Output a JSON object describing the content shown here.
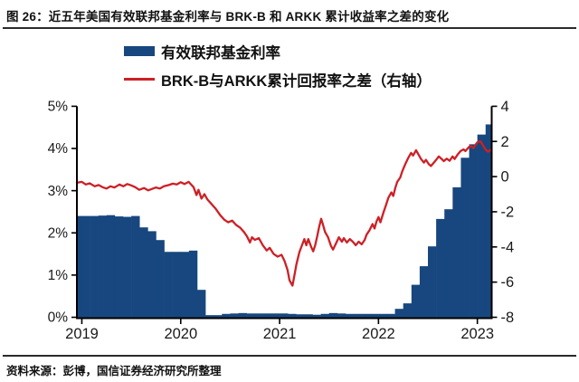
{
  "title": "图 26：近五年美国有效联邦基金利率与 BRK-B 和 ARKK 累计收益率之差的变化",
  "source_note": "资料来源：彭博，国信证券经济研究所整理",
  "colors": {
    "bar": "#17477E",
    "line": "#CD2026",
    "axis": "#000000",
    "rule": "#2A2A2A",
    "text": "#1A1A1A",
    "background": "#FFFFFF"
  },
  "legend": [
    {
      "label": "有效联邦基金利率",
      "swatch": "bar",
      "color": "#17477E"
    },
    {
      "label": "BRK-B与ARKK累计回报率之差（右轴）",
      "swatch": "line",
      "color": "#CD2026"
    }
  ],
  "chart_data": {
    "type": "bar+line combo, dual axis",
    "x_axis": {
      "range": [
        2018.95,
        2023.145
      ],
      "tick_values": [
        2019,
        2020,
        2021,
        2022,
        2023
      ],
      "tick_labels": [
        "2019",
        "2020",
        "2021",
        "2022",
        "2023"
      ]
    },
    "left_axis": {
      "range": [
        0,
        5
      ],
      "tick_values": [
        0,
        1,
        2,
        3,
        4,
        5
      ],
      "tick_labels": [
        "0%",
        "1%",
        "2%",
        "3%",
        "4%",
        "5%"
      ],
      "applies_to": "有效联邦基金利率"
    },
    "right_axis": {
      "range": [
        -8,
        4
      ],
      "tick_values": [
        -8,
        -6,
        -4,
        -2,
        0,
        2,
        4
      ],
      "tick_labels": [
        "-8",
        "-6",
        "-4",
        "-2",
        "0",
        "2",
        "4"
      ],
      "applies_to": "BRK-B与ARKK累计回报率之差"
    },
    "grid": false,
    "legend_position": "top-center",
    "series": [
      {
        "name": "有效联邦基金利率",
        "type": "bar",
        "axis": "left",
        "unit": "%",
        "color": "#17477E",
        "start_month": "2018-12",
        "monthly_values": [
          2.4,
          2.4,
          2.4,
          2.41,
          2.42,
          2.39,
          2.38,
          2.4,
          2.13,
          2.04,
          1.83,
          1.55,
          1.55,
          1.55,
          1.58,
          0.65,
          0.05,
          0.05,
          0.08,
          0.09,
          0.1,
          0.09,
          0.09,
          0.09,
          0.09,
          0.09,
          0.08,
          0.07,
          0.07,
          0.06,
          0.08,
          0.1,
          0.09,
          0.08,
          0.08,
          0.08,
          0.08,
          0.08,
          0.08,
          0.2,
          0.33,
          0.77,
          1.21,
          1.68,
          2.33,
          2.56,
          3.08,
          3.78,
          4.1,
          4.33,
          4.57
        ]
      },
      {
        "name": "BRK-B与ARKK累计回报率之差（右轴）",
        "type": "line",
        "axis": "right",
        "color": "#CD2026",
        "points": [
          [
            2018.95,
            -0.35
          ],
          [
            2019.0,
            -0.3
          ],
          [
            2019.04,
            -0.45
          ],
          [
            2019.08,
            -0.38
          ],
          [
            2019.13,
            -0.55
          ],
          [
            2019.17,
            -0.48
          ],
          [
            2019.21,
            -0.6
          ],
          [
            2019.25,
            -0.68
          ],
          [
            2019.29,
            -0.55
          ],
          [
            2019.33,
            -0.62
          ],
          [
            2019.38,
            -0.45
          ],
          [
            2019.42,
            -0.55
          ],
          [
            2019.46,
            -0.42
          ],
          [
            2019.5,
            -0.5
          ],
          [
            2019.54,
            -0.6
          ],
          [
            2019.58,
            -0.75
          ],
          [
            2019.63,
            -0.65
          ],
          [
            2019.67,
            -0.78
          ],
          [
            2019.71,
            -0.7
          ],
          [
            2019.75,
            -0.62
          ],
          [
            2019.79,
            -0.68
          ],
          [
            2019.83,
            -0.55
          ],
          [
            2019.88,
            -0.48
          ],
          [
            2019.92,
            -0.4
          ],
          [
            2019.96,
            -0.45
          ],
          [
            2020.0,
            -0.32
          ],
          [
            2020.04,
            -0.42
          ],
          [
            2020.08,
            -0.3
          ],
          [
            2020.13,
            -0.6
          ],
          [
            2020.16,
            -1.05
          ],
          [
            2020.18,
            -0.75
          ],
          [
            2020.21,
            -1.25
          ],
          [
            2020.24,
            -1.0
          ],
          [
            2020.27,
            -1.3
          ],
          [
            2020.31,
            -1.55
          ],
          [
            2020.35,
            -1.8
          ],
          [
            2020.4,
            -2.2
          ],
          [
            2020.44,
            -2.45
          ],
          [
            2020.48,
            -2.6
          ],
          [
            2020.52,
            -2.5
          ],
          [
            2020.56,
            -2.75
          ],
          [
            2020.6,
            -2.9
          ],
          [
            2020.64,
            -3.15
          ],
          [
            2020.67,
            -3.4
          ],
          [
            2020.7,
            -3.75
          ],
          [
            2020.72,
            -3.45
          ],
          [
            2020.75,
            -3.6
          ],
          [
            2020.79,
            -3.5
          ],
          [
            2020.83,
            -3.9
          ],
          [
            2020.87,
            -4.2
          ],
          [
            2020.9,
            -4.05
          ],
          [
            2020.94,
            -4.4
          ],
          [
            2020.98,
            -4.55
          ],
          [
            2021.02,
            -4.45
          ],
          [
            2021.05,
            -4.8
          ],
          [
            2021.08,
            -5.3
          ],
          [
            2021.1,
            -5.9
          ],
          [
            2021.13,
            -6.2
          ],
          [
            2021.15,
            -5.6
          ],
          [
            2021.17,
            -5.0
          ],
          [
            2021.2,
            -4.3
          ],
          [
            2021.23,
            -3.85
          ],
          [
            2021.25,
            -3.55
          ],
          [
            2021.27,
            -3.9
          ],
          [
            2021.29,
            -3.55
          ],
          [
            2021.32,
            -4.0
          ],
          [
            2021.34,
            -4.25
          ],
          [
            2021.36,
            -3.9
          ],
          [
            2021.38,
            -3.4
          ],
          [
            2021.4,
            -2.85
          ],
          [
            2021.42,
            -2.4
          ],
          [
            2021.44,
            -2.75
          ],
          [
            2021.46,
            -3.15
          ],
          [
            2021.49,
            -3.45
          ],
          [
            2021.52,
            -3.95
          ],
          [
            2021.54,
            -4.15
          ],
          [
            2021.57,
            -3.8
          ],
          [
            2021.6,
            -3.45
          ],
          [
            2021.63,
            -3.7
          ],
          [
            2021.65,
            -3.5
          ],
          [
            2021.68,
            -3.75
          ],
          [
            2021.71,
            -3.55
          ],
          [
            2021.74,
            -3.7
          ],
          [
            2021.77,
            -3.9
          ],
          [
            2021.8,
            -3.7
          ],
          [
            2021.83,
            -3.85
          ],
          [
            2021.86,
            -3.6
          ],
          [
            2021.88,
            -3.3
          ],
          [
            2021.91,
            -3.05
          ],
          [
            2021.94,
            -2.7
          ],
          [
            2021.96,
            -2.95
          ],
          [
            2021.98,
            -2.55
          ],
          [
            2022.0,
            -2.3
          ],
          [
            2022.02,
            -2.6
          ],
          [
            2022.05,
            -2.05
          ],
          [
            2022.08,
            -1.55
          ],
          [
            2022.1,
            -1.2
          ],
          [
            2022.13,
            -0.9
          ],
          [
            2022.15,
            -1.1
          ],
          [
            2022.17,
            -0.65
          ],
          [
            2022.19,
            -0.3
          ],
          [
            2022.22,
            -0.05
          ],
          [
            2022.24,
            0.3
          ],
          [
            2022.27,
            0.7
          ],
          [
            2022.3,
            1.05
          ],
          [
            2022.33,
            1.35
          ],
          [
            2022.35,
            1.2
          ],
          [
            2022.38,
            1.5
          ],
          [
            2022.4,
            1.3
          ],
          [
            2022.43,
            1.0
          ],
          [
            2022.46,
            0.8
          ],
          [
            2022.48,
            0.95
          ],
          [
            2022.51,
            0.7
          ],
          [
            2022.53,
            0.6
          ],
          [
            2022.56,
            0.8
          ],
          [
            2022.59,
            1.0
          ],
          [
            2022.61,
            1.15
          ],
          [
            2022.64,
            1.0
          ],
          [
            2022.66,
            0.88
          ],
          [
            2022.69,
            1.02
          ],
          [
            2022.72,
            0.9
          ],
          [
            2022.75,
            1.15
          ],
          [
            2022.77,
            1.0
          ],
          [
            2022.8,
            1.25
          ],
          [
            2022.83,
            1.45
          ],
          [
            2022.86,
            1.55
          ],
          [
            2022.88,
            1.45
          ],
          [
            2022.91,
            1.65
          ],
          [
            2022.93,
            1.75
          ],
          [
            2022.96,
            1.62
          ],
          [
            2022.98,
            1.8
          ],
          [
            2023.0,
            1.95
          ],
          [
            2023.03,
            2.02
          ],
          [
            2023.05,
            1.85
          ],
          [
            2023.07,
            1.65
          ],
          [
            2023.09,
            1.5
          ],
          [
            2023.11,
            1.42
          ],
          [
            2023.13,
            1.52
          ],
          [
            2023.14,
            1.45
          ]
        ]
      }
    ]
  }
}
